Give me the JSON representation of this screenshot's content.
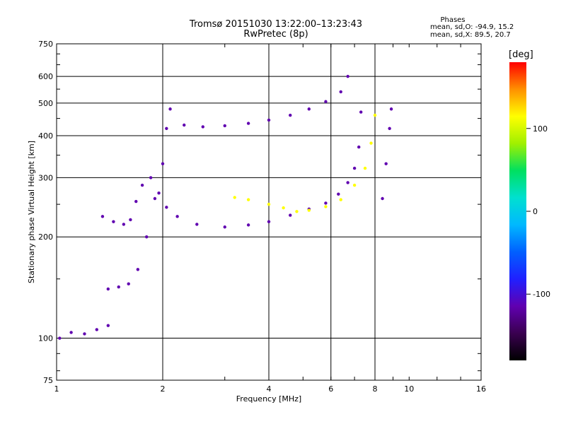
{
  "title_line1": "Tromsø 20151030 13:22:00–13:23:43",
  "title_line2": "RwPretec (8p)",
  "phases": {
    "title": "Phases",
    "o_label": "mean, sd,O:",
    "o_values": "-94.9, 15.2",
    "x_label": "mean, sd,X:",
    "x_values": "89.5, 20.7"
  },
  "colorbar": {
    "unit": "[deg]",
    "min": -180,
    "max": 180,
    "ticks": [
      100,
      0,
      -100
    ],
    "colors": [
      "#000000",
      "#3a0050",
      "#6000b0",
      "#2020ff",
      "#0060ff",
      "#00b8ff",
      "#00e0d0",
      "#00e060",
      "#a0f000",
      "#ffff00",
      "#ff9000",
      "#ff0000"
    ]
  },
  "chart_data": {
    "type": "scatter",
    "title": "Tromsø 20151030 13:22:00–13:23:43",
    "subtitle": "RwPretec (8p)",
    "xlabel": "Frequency [MHz]",
    "ylabel": "Stationary phase Virtual Height [km]",
    "x_scale": "log",
    "y_scale": "log",
    "xlim": [
      1,
      16
    ],
    "ylim": [
      75,
      750
    ],
    "xticks": [
      1,
      2,
      4,
      6,
      8,
      10,
      16
    ],
    "yticks": [
      75,
      100,
      200,
      300,
      400,
      500,
      600,
      750
    ],
    "x_gridlines": [
      2,
      4,
      6,
      8
    ],
    "y_gridlines": [
      100,
      200,
      300,
      400,
      500,
      600
    ],
    "grid": true,
    "color_by": "phase [deg]",
    "traces": [
      {
        "points": [
          [
            1.02,
            100
          ],
          [
            1.1,
            104
          ],
          [
            1.2,
            103
          ],
          [
            1.3,
            106
          ],
          [
            1.4,
            109
          ]
        ],
        "phase": -110
      },
      {
        "points": [
          [
            1.35,
            230
          ],
          [
            1.45,
            222
          ],
          [
            1.55,
            218
          ],
          [
            1.62,
            225
          ],
          [
            1.68,
            255
          ],
          [
            1.75,
            285
          ],
          [
            1.85,
            300
          ],
          [
            1.95,
            270
          ],
          [
            2.05,
            245
          ],
          [
            2.2,
            230
          ],
          [
            2.5,
            218
          ],
          [
            3.0,
            214
          ],
          [
            3.5,
            217
          ],
          [
            4.0,
            222
          ],
          [
            4.6,
            232
          ],
          [
            5.2,
            242
          ],
          [
            5.8,
            252
          ],
          [
            6.3,
            268
          ],
          [
            6.7,
            290
          ],
          [
            7.0,
            320
          ],
          [
            7.2,
            370
          ],
          [
            7.3,
            470
          ]
        ],
        "phase": -105
      },
      {
        "points": [
          [
            1.4,
            140
          ],
          [
            1.5,
            142
          ],
          [
            1.6,
            145
          ],
          [
            1.7,
            160
          ],
          [
            1.8,
            200
          ],
          [
            1.9,
            260
          ],
          [
            2.0,
            330
          ],
          [
            2.05,
            420
          ],
          [
            2.1,
            480
          ]
        ],
        "phase": -100
      },
      {
        "points": [
          [
            2.3,
            430
          ],
          [
            2.6,
            425
          ],
          [
            3.0,
            428
          ],
          [
            3.5,
            435
          ],
          [
            4.0,
            445
          ],
          [
            4.6,
            460
          ],
          [
            5.2,
            480
          ],
          [
            5.8,
            505
          ],
          [
            6.4,
            540
          ],
          [
            6.7,
            600
          ]
        ],
        "phase": -115
      },
      {
        "points": [
          [
            3.2,
            262
          ],
          [
            3.5,
            258
          ],
          [
            4.0,
            250
          ],
          [
            4.4,
            244
          ],
          [
            4.8,
            238
          ],
          [
            5.2,
            240
          ],
          [
            5.8,
            246
          ],
          [
            6.4,
            258
          ],
          [
            7.0,
            285
          ],
          [
            7.5,
            320
          ],
          [
            7.8,
            380
          ],
          [
            8.0,
            460
          ]
        ],
        "phase": 110
      },
      {
        "points": [
          [
            8.4,
            260
          ],
          [
            8.6,
            330
          ],
          [
            8.8,
            420
          ],
          [
            8.9,
            480
          ]
        ],
        "phase": -100
      }
    ]
  }
}
